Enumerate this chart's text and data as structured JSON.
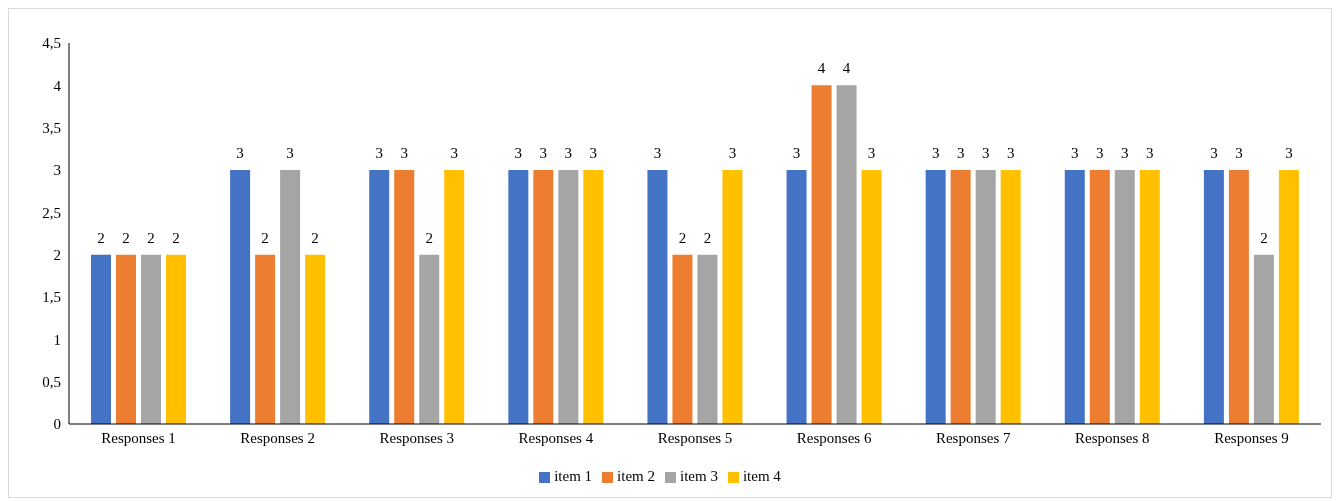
{
  "chart_data": {
    "type": "bar",
    "categories": [
      "Responses 1",
      "Responses 2",
      "Responses 3",
      "Responses 4",
      "Responses 5",
      "Responses 6",
      "Responses 7",
      "Responses 8",
      "Responses 9"
    ],
    "series": [
      {
        "name": "item 1",
        "color": "#4472c4",
        "values": [
          2,
          3,
          3,
          3,
          3,
          3,
          3,
          3,
          3
        ]
      },
      {
        "name": "item 2",
        "color": "#ed7d31",
        "values": [
          2,
          2,
          3,
          3,
          2,
          4,
          3,
          3,
          3
        ]
      },
      {
        "name": "item 3",
        "color": "#a5a5a5",
        "values": [
          2,
          3,
          2,
          3,
          2,
          4,
          3,
          3,
          2
        ]
      },
      {
        "name": "item 4",
        "color": "#ffc000",
        "values": [
          2,
          2,
          3,
          3,
          3,
          3,
          3,
          3,
          3
        ]
      }
    ],
    "ylim": [
      0,
      4.5
    ],
    "yticks": [
      0,
      {
        "value": 0.5,
        "label": "0,5"
      },
      1,
      {
        "value": 1.5,
        "label": "1,5"
      },
      2,
      {
        "value": 2.5,
        "label": "2,5"
      },
      3,
      {
        "value": 3.5,
        "label": "3,5"
      },
      4,
      {
        "value": 4.5,
        "label": "4,5"
      }
    ],
    "grid": false,
    "legend": "bottom",
    "data_labels": true
  }
}
